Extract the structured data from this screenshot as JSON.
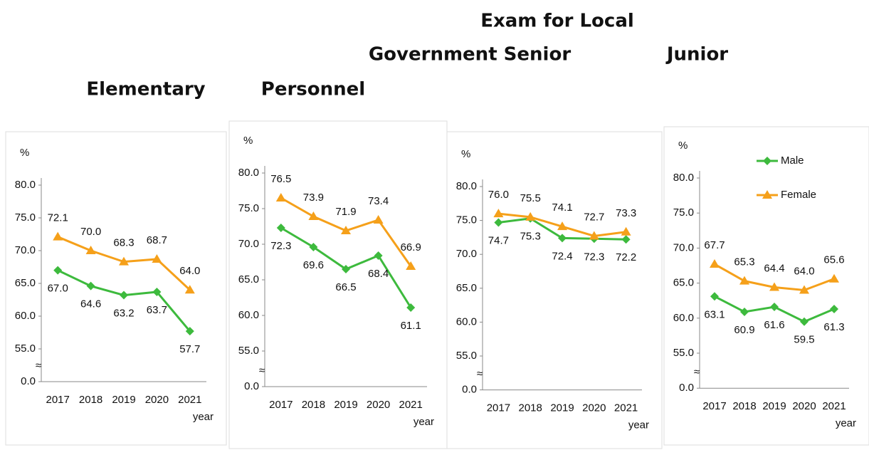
{
  "headings": [
    "Exam for Local",
    "Government Senior",
    "Junior",
    "Elementary",
    "Personnel"
  ],
  "chart_data": [
    {
      "type": "line",
      "y_label": "%",
      "x_label": "year",
      "legend": false,
      "categories": [
        "2017",
        "2018",
        "2019",
        "2020",
        "2021"
      ],
      "ylim": [
        0,
        80
      ],
      "axis_break": [
        0,
        50
      ],
      "yticks": [
        {
          "value": 0,
          "label": "0.0"
        },
        {
          "value": 55,
          "label": "55.0"
        },
        {
          "value": 60,
          "label": "60.0"
        },
        {
          "value": 65,
          "label": "65.0"
        },
        {
          "value": 70,
          "label": "70.0"
        },
        {
          "value": 75,
          "label": "75.0"
        },
        {
          "value": 80,
          "label": "80.0"
        }
      ],
      "series": [
        {
          "name": "Male",
          "color": "#3dba3d",
          "marker": "diamond",
          "label_side": "below",
          "values": [
            67.0,
            64.6,
            63.2,
            63.7,
            57.7
          ],
          "value_labels": [
            "67.0",
            "64.6",
            "63.2",
            "63.7",
            "57.7"
          ]
        },
        {
          "name": "Female",
          "color": "#f5a01a",
          "marker": "triangle",
          "label_side": "above",
          "values": [
            72.1,
            70.0,
            68.3,
            68.7,
            64.0
          ],
          "value_labels": [
            "72.1",
            "70.0",
            "68.3",
            "68.7",
            "64.0"
          ]
        }
      ]
    },
    {
      "type": "line",
      "y_label": "%",
      "x_label": "year",
      "legend": false,
      "categories": [
        "2017",
        "2018",
        "2019",
        "2020",
        "2021"
      ],
      "ylim": [
        0,
        80
      ],
      "axis_break": [
        0,
        50
      ],
      "yticks": [
        {
          "value": 0,
          "label": "0.0"
        },
        {
          "value": 55,
          "label": "55.0"
        },
        {
          "value": 60,
          "label": "60.0"
        },
        {
          "value": 65,
          "label": "65.0"
        },
        {
          "value": 70,
          "label": "70.0"
        },
        {
          "value": 75,
          "label": "75.0"
        },
        {
          "value": 80,
          "label": "80.0"
        }
      ],
      "series": [
        {
          "name": "Male",
          "color": "#3dba3d",
          "marker": "diamond",
          "label_side": "below",
          "values": [
            72.3,
            69.6,
            66.5,
            68.4,
            61.1
          ],
          "value_labels": [
            "72.3",
            "69.6",
            "66.5",
            "68.4",
            "61.1"
          ]
        },
        {
          "name": "Female",
          "color": "#f5a01a",
          "marker": "triangle",
          "label_side": "above",
          "values": [
            76.5,
            73.9,
            71.9,
            73.4,
            66.9
          ],
          "value_labels": [
            "76.5",
            "73.9",
            "71.9",
            "73.4",
            "66.9"
          ]
        }
      ]
    },
    {
      "type": "line",
      "y_label": "%",
      "x_label": "year",
      "legend": false,
      "categories": [
        "2017",
        "2018",
        "2019",
        "2020",
        "2021"
      ],
      "ylim": [
        0,
        80
      ],
      "axis_break": [
        0,
        50
      ],
      "yticks": [
        {
          "value": 0,
          "label": "0.0"
        },
        {
          "value": 55,
          "label": "55.0"
        },
        {
          "value": 60,
          "label": "60.0"
        },
        {
          "value": 65,
          "label": "65.0"
        },
        {
          "value": 70,
          "label": "70.0"
        },
        {
          "value": 75,
          "label": "75.0"
        },
        {
          "value": 80,
          "label": "80.0"
        }
      ],
      "series": [
        {
          "name": "Male",
          "color": "#3dba3d",
          "marker": "diamond",
          "label_side": "below",
          "values": [
            74.7,
            75.3,
            72.4,
            72.3,
            72.2
          ],
          "value_labels": [
            "74.7",
            "75.3",
            "72.4",
            "72.3",
            "72.2"
          ]
        },
        {
          "name": "Female",
          "color": "#f5a01a",
          "marker": "triangle",
          "label_side": "above",
          "values": [
            76.0,
            75.5,
            74.1,
            72.7,
            73.3
          ],
          "value_labels": [
            "76.0",
            "75.5",
            "74.1",
            "72.7",
            "73.3"
          ]
        }
      ]
    },
    {
      "type": "line",
      "y_label": "%",
      "x_label": "year",
      "legend": true,
      "categories": [
        "2017",
        "2018",
        "2019",
        "2020",
        "2021"
      ],
      "ylim": [
        0,
        80
      ],
      "axis_break": [
        0,
        50
      ],
      "yticks": [
        {
          "value": 0,
          "label": "0.0"
        },
        {
          "value": 55,
          "label": "55.0"
        },
        {
          "value": 60,
          "label": "60.0"
        },
        {
          "value": 65,
          "label": "65.0"
        },
        {
          "value": 70,
          "label": "70.0"
        },
        {
          "value": 75,
          "label": "75.0"
        },
        {
          "value": 80,
          "label": "80.0"
        }
      ],
      "series": [
        {
          "name": "Male",
          "color": "#3dba3d",
          "marker": "diamond",
          "label_side": "below",
          "values": [
            63.1,
            60.9,
            61.6,
            59.5,
            61.3
          ],
          "value_labels": [
            "63.1",
            "60.9",
            "61.6",
            "59.5",
            "61.3"
          ]
        },
        {
          "name": "Female",
          "color": "#f5a01a",
          "marker": "triangle",
          "label_side": "above",
          "values": [
            67.7,
            65.3,
            64.4,
            64.0,
            65.6
          ],
          "value_labels": [
            "67.7",
            "65.3",
            "64.4",
            "64.0",
            "65.6"
          ]
        }
      ]
    }
  ]
}
